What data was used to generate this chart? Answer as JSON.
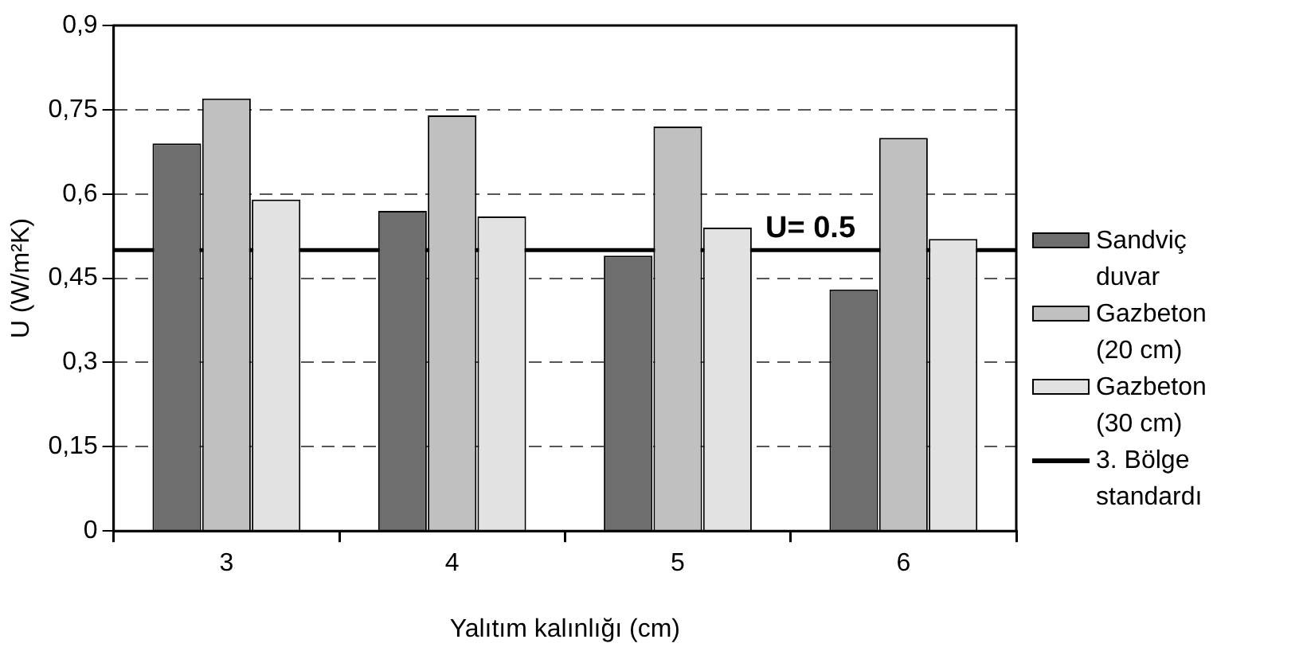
{
  "chart_data": {
    "type": "bar",
    "xlabel": "Yalıtım kalınlığı (cm)",
    "ylabel": "U (W/m²K)",
    "categories": [
      "3",
      "4",
      "5",
      "6"
    ],
    "series": [
      {
        "name": "Sandviç duvar",
        "color": "#6e6e6e",
        "values": [
          0.69,
          0.57,
          0.49,
          0.43
        ]
      },
      {
        "name": "Gazbeton (20 cm)",
        "color": "#c0c0c0",
        "values": [
          0.77,
          0.74,
          0.72,
          0.7
        ]
      },
      {
        "name": "Gazbeton (30 cm)",
        "color": "#e2e2e2",
        "values": [
          0.59,
          0.56,
          0.54,
          0.52
        ]
      }
    ],
    "ref_lines": [
      {
        "axis": "y",
        "value": 0.5,
        "label": "3. Bölge standardı",
        "color": "#000000",
        "line_style": "solid"
      }
    ],
    "annotations": [
      {
        "text": "U= 0.5",
        "x": "5",
        "y": 0.5
      }
    ],
    "ylim": [
      0,
      0.9
    ],
    "yticks": [
      0,
      {
        "value": 0.15,
        "label": "0,15"
      },
      {
        "value": 0.3,
        "label": "0,3"
      },
      {
        "value": 0.45,
        "label": "0,45"
      },
      {
        "value": 0.6,
        "label": "0,6"
      },
      {
        "value": 0.75,
        "label": "0,75"
      },
      {
        "value": 0.9,
        "label": "0,9"
      }
    ],
    "grid": "y",
    "legend": "right"
  }
}
